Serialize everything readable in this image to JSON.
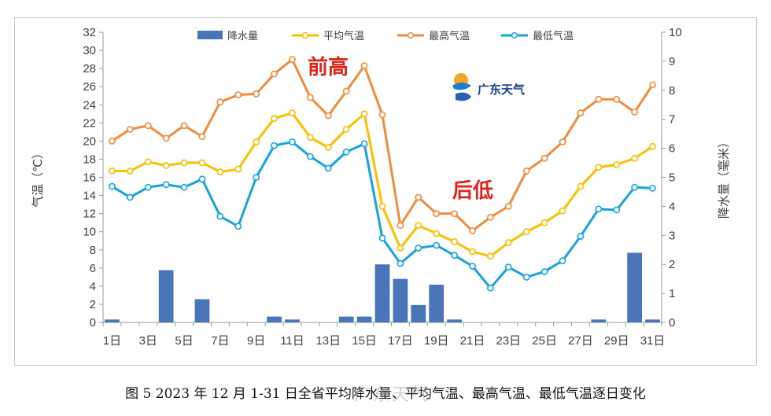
{
  "caption": "图 5   2023 年 12 月 1-31 日全省平均降水量、平均气温、最高气温、最低气温逐日变化",
  "watermark": "广东天气",
  "logo_text": "广东天气",
  "annotations": {
    "early": "前高",
    "late": "后低"
  },
  "colors": {
    "rain": "#4a76b9",
    "avg": "#f8c000",
    "max": "#f08c3c",
    "min": "#17a4dc"
  },
  "chart_data": {
    "type": "bar+line",
    "x_tick_labels": [
      "1日",
      "3日",
      "5日",
      "7日",
      "9日",
      "11日",
      "13日",
      "15日",
      "17日",
      "19日",
      "21日",
      "23日",
      "25日",
      "27日",
      "29日",
      "31日"
    ],
    "x": [
      1,
      2,
      3,
      4,
      5,
      6,
      7,
      8,
      9,
      10,
      11,
      12,
      13,
      14,
      15,
      16,
      17,
      18,
      19,
      20,
      21,
      22,
      23,
      24,
      25,
      26,
      27,
      28,
      29,
      30,
      31
    ],
    "ylabel_left": "气温（℃）",
    "ylabel_right": "降水量（毫米）",
    "ylim_left": [
      0,
      32
    ],
    "ylim_right": [
      0,
      10
    ],
    "yticks_left": [
      0,
      2,
      4,
      6,
      8,
      10,
      12,
      14,
      16,
      18,
      20,
      22,
      24,
      26,
      28,
      30,
      32
    ],
    "yticks_right": [
      0,
      1,
      2,
      3,
      4,
      5,
      6,
      7,
      8,
      9,
      10
    ],
    "legend_position": "top",
    "series": [
      {
        "name": "降水量",
        "type": "bar",
        "axis": "right",
        "color": "#4a76b9",
        "values": [
          0.1,
          0,
          0,
          1.8,
          0,
          0.8,
          0,
          0,
          0,
          0.2,
          0.1,
          0,
          0,
          0.2,
          0.2,
          2.0,
          1.5,
          0.6,
          1.3,
          0.1,
          0,
          0,
          0,
          0,
          0,
          0,
          0,
          0.1,
          0,
          2.4,
          0.1
        ]
      },
      {
        "name": "平均气温",
        "type": "line",
        "axis": "left",
        "color": "#f8c000",
        "values": [
          16.7,
          16.7,
          17.7,
          17.3,
          17.6,
          17.6,
          16.6,
          16.9,
          19.9,
          22.5,
          23.1,
          20.4,
          19.3,
          21.3,
          23.0,
          12.8,
          8.2,
          10.7,
          9.8,
          8.9,
          7.8,
          7.3,
          8.8,
          10.0,
          11.0,
          12.3,
          15.0,
          17.1,
          17.4,
          18.1,
          19.4
        ]
      },
      {
        "name": "最高气温",
        "type": "line",
        "axis": "left",
        "color": "#f08c3c",
        "values": [
          20.0,
          21.3,
          21.7,
          20.3,
          21.7,
          20.5,
          24.3,
          25.1,
          25.2,
          27.4,
          29.0,
          24.8,
          22.8,
          25.5,
          28.3,
          22.9,
          10.7,
          13.8,
          12.0,
          12.0,
          10.1,
          11.6,
          12.8,
          16.7,
          18.1,
          19.9,
          23.1,
          24.6,
          24.6,
          23.2,
          26.2
        ]
      },
      {
        "name": "最低气温",
        "type": "line",
        "axis": "left",
        "color": "#17a4dc",
        "values": [
          15.0,
          13.8,
          14.9,
          15.2,
          14.9,
          15.8,
          11.7,
          10.6,
          16.0,
          19.5,
          19.9,
          18.3,
          17.0,
          18.8,
          19.7,
          9.3,
          6.5,
          8.2,
          8.5,
          7.4,
          6.2,
          3.8,
          6.1,
          5.0,
          5.6,
          6.8,
          9.5,
          12.5,
          12.4,
          14.9,
          14.8
        ]
      }
    ]
  }
}
